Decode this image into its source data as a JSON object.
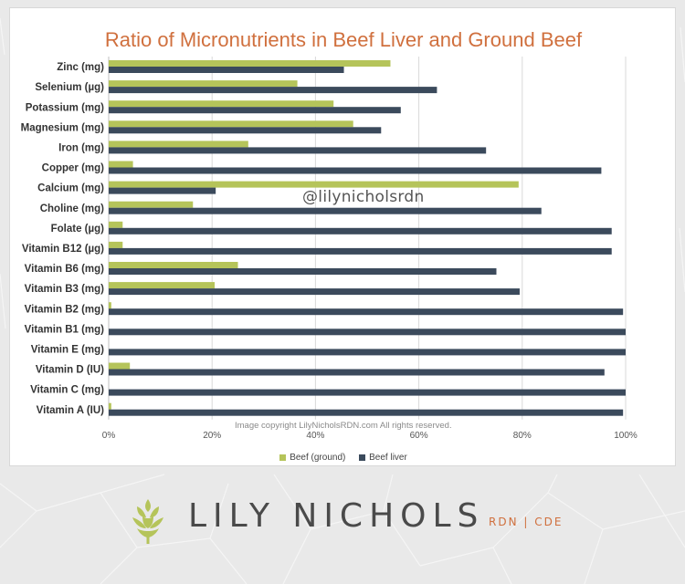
{
  "chart_data": {
    "type": "bar",
    "orientation": "horizontal",
    "title": "Ratio of Micronutrients in Beef Liver and Ground Beef",
    "categories": [
      "Zinc (mg)",
      "Selenium (µg)",
      "Potassium (mg)",
      "Magnesium (mg)",
      "Iron (mg)",
      "Copper (mg)",
      "Calcium (mg)",
      "Choline (mg)",
      "Folate (µg)",
      "Vitamin B12 (µg)",
      "Vitamin B6 (mg)",
      "Vitamin B3 (mg)",
      "Vitamin B2 (mg)",
      "Vitamin B1 (mg)",
      "Vitamin E (mg)",
      "Vitamin D (IU)",
      "Vitamin C (mg)",
      "Vitamin A (IU)"
    ],
    "series": [
      {
        "name": "Beef (ground)",
        "color": "#b5c45a",
        "values": [
          54.5,
          36.5,
          43.5,
          47.3,
          27,
          4.7,
          79.3,
          16.3,
          2.7,
          2.7,
          25,
          20.5,
          0.5,
          0,
          0,
          4.1,
          0,
          0.5
        ]
      },
      {
        "name": "Beef liver",
        "color": "#3b4a5c",
        "values": [
          45.5,
          63.5,
          56.5,
          52.7,
          73,
          95.3,
          20.7,
          83.7,
          97.3,
          97.3,
          75,
          79.5,
          99.5,
          100,
          100,
          95.9,
          100,
          99.5
        ]
      }
    ],
    "x_ticks": [
      "0%",
      "20%",
      "40%",
      "60%",
      "80%",
      "100%"
    ],
    "xlim": [
      0,
      100
    ],
    "grid": true,
    "legend_position": "bottom"
  },
  "annotations": {
    "watermark": "@lilynicholsrdn",
    "copyright": "Image copyright LilyNicholsRDN.com  All rights reserved."
  },
  "brand": {
    "name": "LILY NICHOLS",
    "credentials": "RDN | CDE",
    "icon": "artichoke-icon",
    "accent_color": "#d0703e",
    "icon_color": "#b5c45a"
  }
}
